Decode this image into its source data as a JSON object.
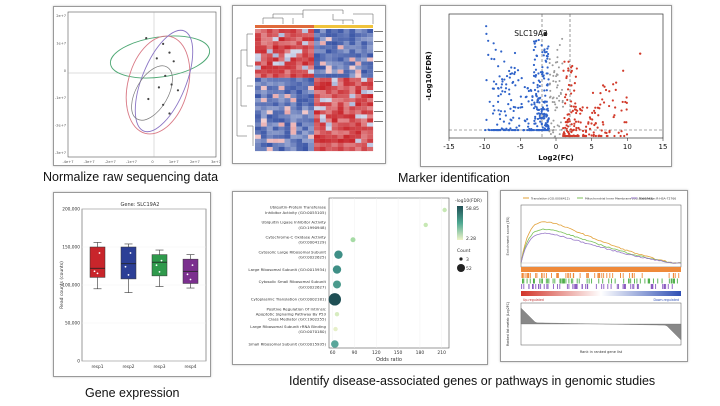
{
  "captions": {
    "normalize": "Normalize raw sequencing data",
    "marker": "Marker identification",
    "gene_expression": "Gene expression",
    "identify": "Identify disease-associated genes or pathways in genomic studies"
  },
  "colors": {
    "volcano_up": "#d23a2a",
    "volcano_down": "#2f63c9",
    "volcano_ns": "#9a9a9a",
    "heat_red": "#c8252b",
    "heat_blue": "#3a55a6",
    "box_red": "#c8252b",
    "box_blue": "#2c3f96",
    "box_green": "#2f9a4c",
    "box_purple": "#7b2f8e",
    "dot_teal": "#1f6f6a"
  },
  "chart_data": [
    {
      "type": "scatter",
      "panel": "pca",
      "xticks": [
        "-4e+7",
        "-3e+7",
        "-2e+7",
        "-1e+7",
        "0",
        "1e+7",
        "2e+7",
        "3e+7"
      ],
      "yticks": [
        "2e+7",
        "1e+7",
        "0",
        "-1e+7",
        "-2e+7",
        "-3e+7"
      ],
      "xlim": [
        -40000000.0,
        30000000.0
      ],
      "ylim": [
        -30000000.0,
        20000000.0
      ],
      "points": [
        [
          -3000000.0,
          11000000.0
        ],
        [
          5000000.0,
          9000000.0
        ],
        [
          8000000.0,
          6000000.0
        ],
        [
          2000000.0,
          4000000.0
        ],
        [
          10000000.0,
          3000000.0
        ],
        [
          6000000.0,
          -2000000.0
        ],
        [
          9000000.0,
          -5000000.0
        ],
        [
          3000000.0,
          -6000000.0
        ],
        [
          12000000.0,
          -7000000.0
        ],
        [
          5000000.0,
          -12000000.0
        ],
        [
          8000000.0,
          -15000000.0
        ],
        [
          -2000000.0,
          -10000000.0
        ]
      ]
    },
    {
      "type": "heatmap",
      "panel": "heatmap",
      "rows": 30,
      "cols": 20
    },
    {
      "type": "scatter",
      "panel": "volcano",
      "xlabel": "Log2(FC)",
      "ylabel": "-Log10(FDR)",
      "annotation": "SLC19A2",
      "xticks": [
        -15,
        -10,
        -5,
        0,
        5,
        10,
        15
      ],
      "xlim": [
        -15,
        15
      ],
      "ylim": [
        0,
        25
      ],
      "highlight": [
        -1.5,
        21
      ]
    },
    {
      "type": "bar",
      "panel": "box",
      "title": "Gene: SLC19A2",
      "categories": [
        "resp1",
        "resp2",
        "resp3",
        "resp4"
      ],
      "ylabel": "Read counts (counts)",
      "yticks": [
        "200,000",
        "150,000",
        "100,000",
        "50,000",
        "0"
      ],
      "ylim": [
        0,
        200000
      ],
      "series": [
        {
          "min": 95000,
          "q1": 110000,
          "median": 122000,
          "q3": 150000,
          "max": 156000
        },
        {
          "min": 90000,
          "q1": 108000,
          "median": 128000,
          "q3": 150000,
          "max": 154000
        },
        {
          "min": 98000,
          "q1": 112000,
          "median": 130000,
          "q3": 140000,
          "max": 146000
        },
        {
          "min": 96000,
          "q1": 102000,
          "median": 118000,
          "q3": 134000,
          "max": 140000
        }
      ]
    },
    {
      "type": "scatter",
      "panel": "dotplot",
      "xlabel": "Odds ratio",
      "xticks": [
        60,
        90,
        120,
        150,
        180,
        210
      ],
      "xlim": [
        55,
        220
      ],
      "legend_title": "-log10(FDR)",
      "legend_max": "58.85",
      "legend_min": "2.28",
      "count_title": "Count",
      "count_values": [
        "3",
        "52"
      ],
      "terms": [
        {
          "label": "Ubiquitin-Protein Transferase Inhibitor Activity (GO:0055105)",
          "x": 214,
          "size": 2.2,
          "color": "#c7e8b4"
        },
        {
          "label": "Ubiquitin Ligase Inhibitor Activity (GO:1990948)",
          "x": 188,
          "size": 2.2,
          "color": "#c7e8b4"
        },
        {
          "label": "Cytochrome-C Oxidase Activity (GO:0004129)",
          "x": 88,
          "size": 2.5,
          "color": "#a6dba5"
        },
        {
          "label": "Cytosolic Large Ribosomal Subunit (GO:0022625)",
          "x": 68,
          "size": 4.2,
          "color": "#3f8f86"
        },
        {
          "label": "Large Ribosomal Subunit (GO:0015934)",
          "x": 66,
          "size": 4.2,
          "color": "#3f8f86"
        },
        {
          "label": "Cytosolic Small Ribosomal Subunit (GO:0022627)",
          "x": 66,
          "size": 4.0,
          "color": "#4a9a8c"
        },
        {
          "label": "Cytoplasmic Translation (GO:0002181)",
          "x": 63,
          "size": 6.2,
          "color": "#1f4f55"
        },
        {
          "label": "Positive Regulation Of Intrinsic Apoptotic Signaling Pathway By P53 Class Mediator (GO:1902255)",
          "x": 66,
          "size": 2.2,
          "color": "#d7ecc0"
        },
        {
          "label": "Large Ribosomal Subunit rRNA Binding (GO:0070180)",
          "x": 64,
          "size": 2.2,
          "color": "#e6efc9"
        },
        {
          "label": "Small Ribosomal Subunit (GO:0015935)",
          "x": 63,
          "size": 3.8,
          "color": "#5aa69a"
        }
      ]
    },
    {
      "type": "line",
      "panel": "gsea",
      "legend": [
        "Translation (GO:0006412)",
        "Mitochondrial Inner Membrane (GO:0005743)",
        "Translation R-HSA-72766"
      ],
      "series_colors": [
        "#e2a13a",
        "#7cc25a",
        "#9a7bc9"
      ],
      "upper_label": "Enrichment score (ES)",
      "lower_label": "Ranked list metric (Log2FC)",
      "xlabel": "Rank in ranked gene list",
      "left_tag": "Up-regulated",
      "right_tag": "Down-regulated"
    }
  ]
}
